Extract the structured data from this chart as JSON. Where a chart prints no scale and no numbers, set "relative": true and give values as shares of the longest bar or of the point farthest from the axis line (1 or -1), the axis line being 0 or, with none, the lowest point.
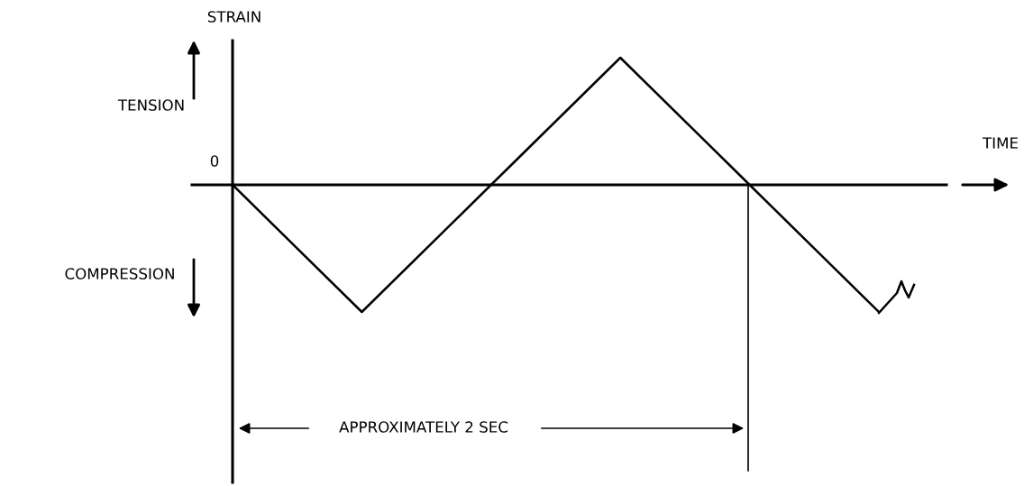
{
  "chart_data": {
    "type": "line",
    "relative": true,
    "xlabel": "TIME",
    "ylabel": "STRAIN",
    "categories": [
      null,
      null,
      null,
      null,
      null,
      null
    ],
    "series": [
      {
        "color": "#000000",
        "values": [
          0,
          -1,
          0,
          1,
          0,
          -1
        ]
      }
    ],
    "annotations": [
      "0",
      "TENSION",
      "COMPRESSION",
      "APPROXIMATELY 2 SEC"
    ],
    "marker": "none",
    "line_style": "solid"
  }
}
